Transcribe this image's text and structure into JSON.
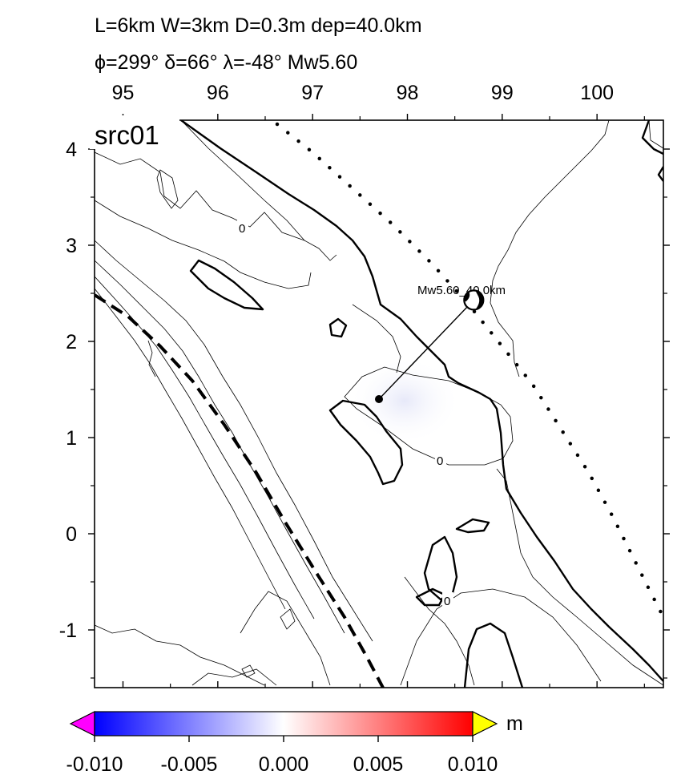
{
  "header": {
    "line1": "L=6km W=3km D=0.3m dep=40.0km",
    "line2": "ϕ=299° δ=66° λ=-48° Mw5.60"
  },
  "map": {
    "panel_label": "src01",
    "x_axis": {
      "min": 94.7,
      "max": 100.7,
      "ticks": [
        95,
        96,
        97,
        98,
        99,
        100
      ],
      "labels": [
        "95",
        "96",
        "97",
        "98",
        "99",
        "100"
      ]
    },
    "y_axis": {
      "min": -1.6,
      "max": 4.3,
      "ticks": [
        4,
        3,
        2,
        1,
        0,
        -1
      ],
      "labels": [
        "4",
        "3",
        "2",
        "1",
        "0",
        "-1"
      ]
    },
    "contour_labels": [
      "0",
      "0",
      "0"
    ],
    "epicenter": {
      "lon": 97.7,
      "lat": 1.4
    },
    "beachball": {
      "lon": 98.7,
      "lat": 2.43
    },
    "event_label": "Mw5.60_40.0km"
  },
  "colorbar": {
    "unit": "m",
    "min": -0.01,
    "max": 0.01,
    "tick_labels": [
      "-0.010",
      "-0.005",
      "0.000",
      "0.005",
      "0.010"
    ],
    "colors": {
      "low_overflow": "#ff00ff",
      "low": "#0000ff",
      "mid": "#ffffff",
      "high": "#ff0000",
      "high_overflow": "#ffff00"
    }
  }
}
